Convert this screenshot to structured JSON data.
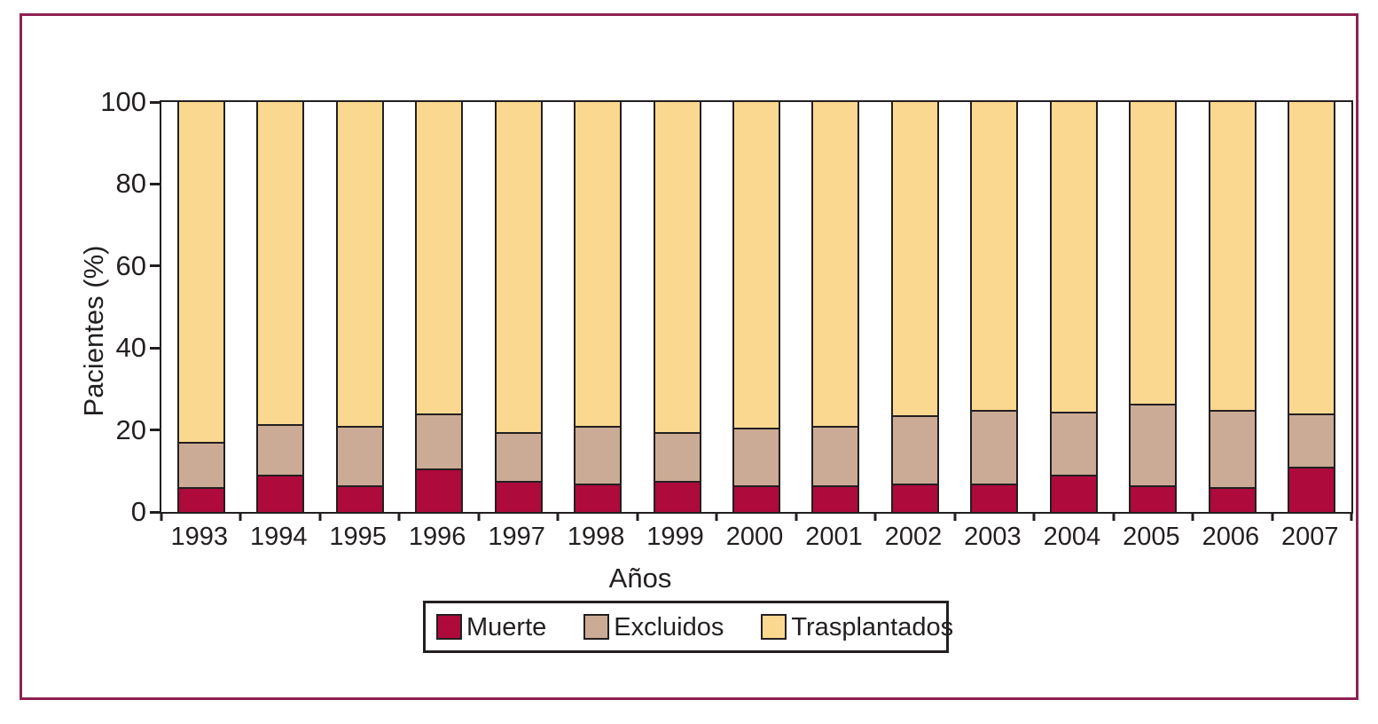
{
  "figure": {
    "frame_color": "#8e2152",
    "background": "#ffffff",
    "axis_color": "#231f20"
  },
  "chart_data": {
    "type": "bar",
    "stacked": true,
    "stacked_100_percent": true,
    "title": "",
    "xlabel": "Años",
    "ylabel": "Pacientes (%)",
    "ylim": [
      0,
      100
    ],
    "yticks": [
      0,
      20,
      40,
      60,
      80,
      100
    ],
    "grid": false,
    "legend_position": "bottom",
    "categories": [
      "1993",
      "1994",
      "1995",
      "1996",
      "1997",
      "1998",
      "1999",
      "2000",
      "2001",
      "2002",
      "2003",
      "2004",
      "2005",
      "2006",
      "2007"
    ],
    "series": [
      {
        "name": "Muerte",
        "color": "#ae0a3c",
        "values": [
          6,
          9,
          6.5,
          10.5,
          7.5,
          7,
          7.5,
          6.5,
          6.5,
          7,
          7,
          9,
          6.5,
          6,
          11
        ]
      },
      {
        "name": "Excluidos",
        "color": "#cbab95",
        "values": [
          11,
          12.5,
          14.5,
          13.5,
          12,
          14,
          12,
          14,
          14.5,
          16.5,
          18,
          15.5,
          20,
          19,
          13
        ]
      },
      {
        "name": "Trasplantados",
        "color": "#fbd88f",
        "values": [
          83,
          78.5,
          79,
          76,
          80.5,
          79,
          80.5,
          79.5,
          79,
          76.5,
          75,
          75.5,
          73.5,
          75,
          76
        ]
      }
    ]
  }
}
